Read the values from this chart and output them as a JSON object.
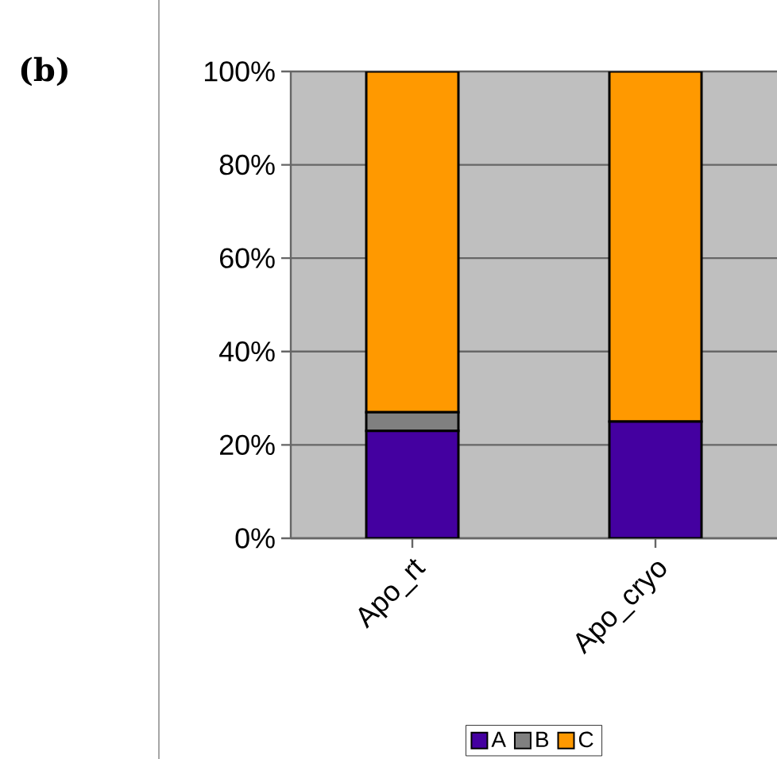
{
  "chart_data": {
    "type": "bar",
    "stacked": true,
    "categories": [
      "Apo_rt",
      "Apo_cryo"
    ],
    "series": [
      {
        "name": "A",
        "color": "#4400a0",
        "values": [
          23,
          25
        ]
      },
      {
        "name": "B",
        "color": "#808080",
        "values": [
          4,
          0
        ]
      },
      {
        "name": "C",
        "color": "#ff9900",
        "values": [
          73,
          75
        ]
      }
    ],
    "ylim": [
      0,
      100
    ],
    "yticks": [
      {
        "value": 0,
        "label": "0%"
      },
      {
        "value": 20,
        "label": "20%"
      },
      {
        "value": 40,
        "label": "40%"
      },
      {
        "value": 60,
        "label": "60%"
      },
      {
        "value": 80,
        "label": "80%"
      },
      {
        "value": 100,
        "label": "100%"
      }
    ],
    "grid": "y",
    "legend": "bottom",
    "annotations": [
      "(b)"
    ]
  }
}
